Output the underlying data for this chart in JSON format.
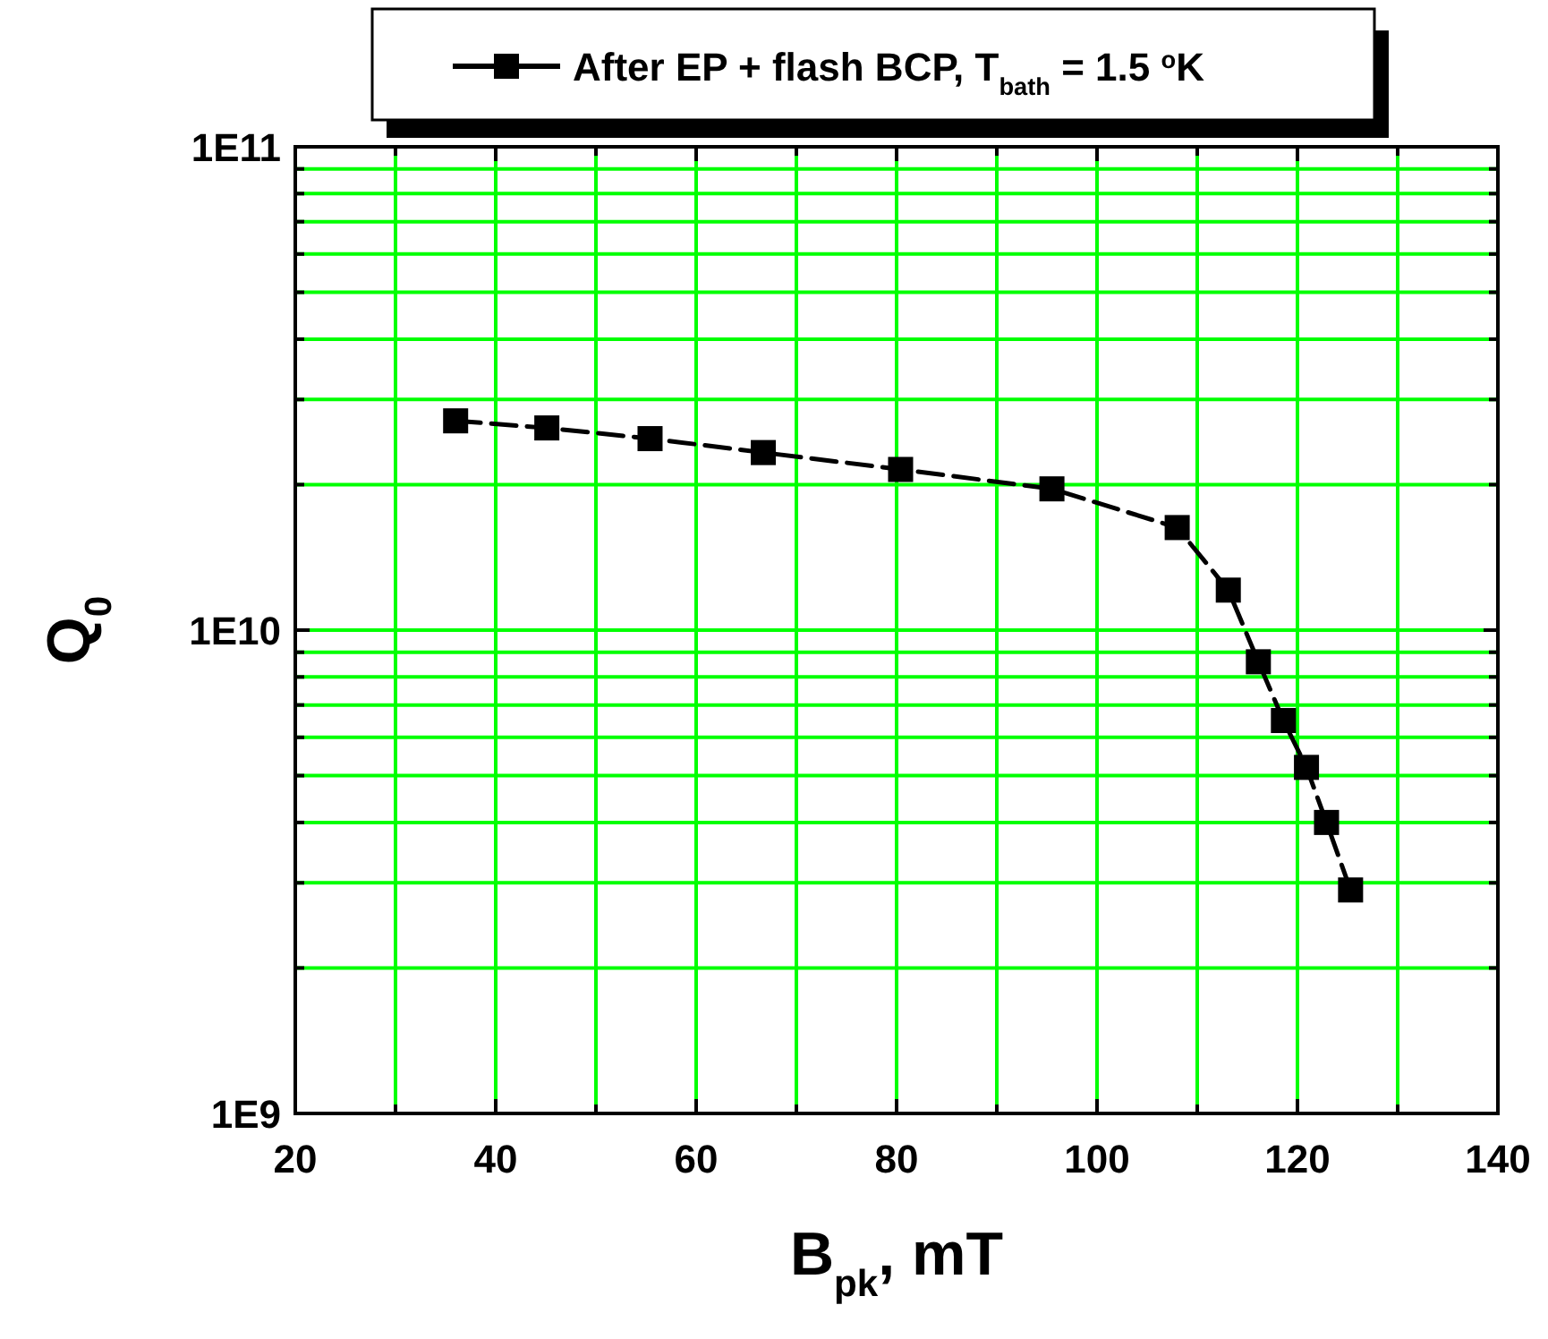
{
  "chart_data": {
    "type": "line",
    "xlabel": "B$_{pk}$, mT",
    "ylabel": "Q$_{0}$",
    "log": "y",
    "grid": true,
    "legend": "top",
    "marker": "square",
    "line_style": "dashed",
    "xlim": [
      20,
      140
    ],
    "xticks": [
      20,
      {
        "value": 30,
        "label": null
      },
      40,
      {
        "value": 50,
        "label": null
      },
      60,
      {
        "value": 70,
        "label": null
      },
      80,
      {
        "value": 90,
        "label": null
      },
      100,
      {
        "value": 110,
        "label": null
      },
      120,
      {
        "value": 130,
        "label": null
      },
      140
    ],
    "ylim": [
      1000000000.0,
      100000000000.0
    ],
    "yticks": [
      {
        "value": 1000000000.0,
        "label": "1E9"
      },
      {
        "value": 2000000000.0,
        "label": null
      },
      {
        "value": 3000000000.0,
        "label": null
      },
      {
        "value": 4000000000.0,
        "label": null
      },
      {
        "value": 5000000000.0,
        "label": null
      },
      {
        "value": 6000000000.0,
        "label": null
      },
      {
        "value": 7000000000.0,
        "label": null
      },
      {
        "value": 8000000000.0,
        "label": null
      },
      {
        "value": 9000000000.0,
        "label": null
      },
      {
        "value": 10000000000.0,
        "label": "1E10"
      },
      {
        "value": 20000000000.0,
        "label": null
      },
      {
        "value": 30000000000.0,
        "label": null
      },
      {
        "value": 40000000000.0,
        "label": null
      },
      {
        "value": 50000000000.0,
        "label": null
      },
      {
        "value": 60000000000.0,
        "label": null
      },
      {
        "value": 70000000000.0,
        "label": null
      },
      {
        "value": 80000000000.0,
        "label": null
      },
      {
        "value": 90000000000.0,
        "label": null
      },
      {
        "value": 100000000000.0,
        "label": "1E11"
      }
    ],
    "x": [
      36.0,
      45.1,
      55.4,
      66.7,
      80.4,
      95.5,
      108.0,
      113.1,
      116.1,
      118.6,
      120.9,
      122.9,
      125.3
    ],
    "series": [
      {
        "name": "After EP + flash BCP, T$_{bath}$ = 1.5 $^{o}$K",
        "color": "#000000",
        "values": [
          27100000000.0,
          26200000000.0,
          24900000000.0,
          23300000000.0,
          21500000000.0,
          19600000000.0,
          16300000000.0,
          12100000000.0,
          8600000000.0,
          6500000000.0,
          5200000000.0,
          4000000000.0,
          2900000000.0
        ]
      }
    ]
  }
}
